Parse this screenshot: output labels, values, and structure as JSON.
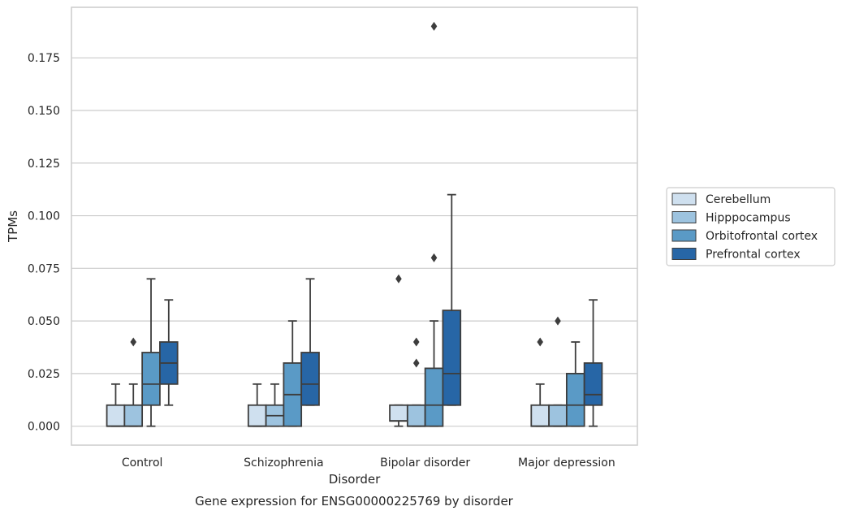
{
  "chart_data": {
    "type": "box",
    "title": "Gene expression for ENSG00000225769 by disorder",
    "xlabel": "Disorder",
    "ylabel": "TPMs",
    "categories": [
      "Control",
      "Schizophrenia",
      "Bipolar disorder",
      "Major depression"
    ],
    "ylim": [
      -0.009,
      0.199
    ],
    "yticks": [
      0.0,
      0.025,
      0.05,
      0.075,
      0.1,
      0.125,
      0.15,
      0.175
    ],
    "ytick_labels": [
      "0.000",
      "0.025",
      "0.050",
      "0.075",
      "0.100",
      "0.125",
      "0.150",
      "0.175"
    ],
    "grid": true,
    "legend_position": "right",
    "series": [
      {
        "name": "Cerebellum",
        "color": "#cfe0ef",
        "boxes": [
          {
            "whislo": 0.0,
            "q1": 0.0,
            "med": 0.0,
            "q3": 0.01,
            "whishi": 0.02,
            "fliers": []
          },
          {
            "whislo": 0.0,
            "q1": 0.0,
            "med": 0.0,
            "q3": 0.01,
            "whishi": 0.02,
            "fliers": []
          },
          {
            "whislo": 0.0,
            "q1": 0.0025,
            "med": 0.0025,
            "q3": 0.01,
            "whishi": 0.01,
            "fliers": [
              0.07
            ]
          },
          {
            "whislo": 0.0,
            "q1": 0.0,
            "med": 0.0,
            "q3": 0.01,
            "whishi": 0.02,
            "fliers": [
              0.04
            ]
          }
        ]
      },
      {
        "name": "Hipppocampus",
        "color": "#9dc3df",
        "boxes": [
          {
            "whislo": 0.0,
            "q1": 0.0,
            "med": 0.0,
            "q3": 0.01,
            "whishi": 0.02,
            "fliers": [
              0.04
            ]
          },
          {
            "whislo": 0.0,
            "q1": 0.0,
            "med": 0.005,
            "q3": 0.01,
            "whishi": 0.02,
            "fliers": []
          },
          {
            "whislo": 0.0,
            "q1": 0.0,
            "med": 0.0,
            "q3": 0.01,
            "whishi": 0.01,
            "fliers": [
              0.03,
              0.04
            ]
          },
          {
            "whislo": 0.0,
            "q1": 0.0,
            "med": 0.0,
            "q3": 0.01,
            "whishi": 0.01,
            "fliers": [
              0.05
            ]
          }
        ]
      },
      {
        "name": "Orbitofrontal cortex",
        "color": "#5a9ac6",
        "boxes": [
          {
            "whislo": 0.0,
            "q1": 0.01,
            "med": 0.02,
            "q3": 0.035,
            "whishi": 0.07,
            "fliers": []
          },
          {
            "whislo": 0.0,
            "q1": 0.0,
            "med": 0.015,
            "q3": 0.03,
            "whishi": 0.05,
            "fliers": []
          },
          {
            "whislo": 0.0,
            "q1": 0.0,
            "med": 0.01,
            "q3": 0.0275,
            "whishi": 0.05,
            "fliers": [
              0.08,
              0.19
            ]
          },
          {
            "whislo": 0.0,
            "q1": 0.0,
            "med": 0.01,
            "q3": 0.025,
            "whishi": 0.04,
            "fliers": []
          }
        ]
      },
      {
        "name": "Prefrontal cortex",
        "color": "#2766a6",
        "boxes": [
          {
            "whislo": 0.01,
            "q1": 0.02,
            "med": 0.03,
            "q3": 0.04,
            "whishi": 0.06,
            "fliers": []
          },
          {
            "whislo": 0.01,
            "q1": 0.01,
            "med": 0.02,
            "q3": 0.035,
            "whishi": 0.07,
            "fliers": []
          },
          {
            "whislo": 0.01,
            "q1": 0.01,
            "med": 0.025,
            "q3": 0.055,
            "whishi": 0.11,
            "fliers": []
          },
          {
            "whislo": 0.0,
            "q1": 0.01,
            "med": 0.015,
            "q3": 0.03,
            "whishi": 0.06,
            "fliers": []
          }
        ]
      }
    ]
  }
}
